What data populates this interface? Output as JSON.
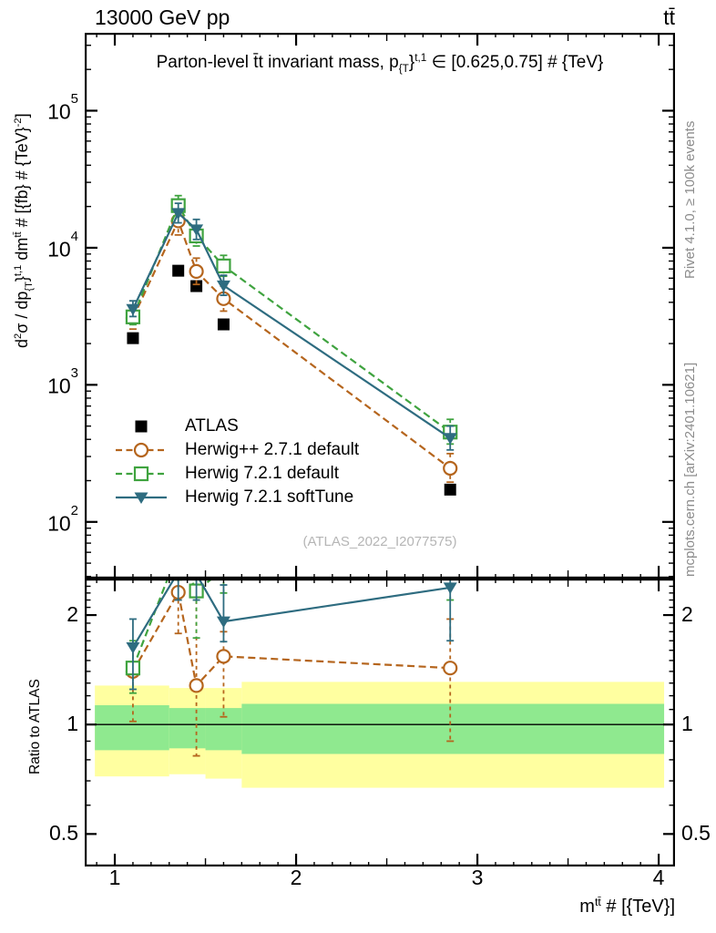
{
  "header": {
    "left": "13000 GeV pp",
    "right": "tt̄"
  },
  "panel_title": {
    "pre": "Parton-level t̄t invariant mass, p",
    "sub": "{T",
    "brace": "}",
    "sup": "t,1",
    "post": " ∈ [0.625,0.75] # {TeV}"
  },
  "y_axis_title": {
    "p1": "d",
    "sup1": "2",
    "p2": "σ / dp",
    "sub1": "{T",
    "p3": "}",
    "sup2": "t,1",
    "p4": " dm",
    "sup3": "tt̄",
    "p5": " # [{fb} # {TeV}",
    "sup4": "-2",
    "p6": "]"
  },
  "x_axis_title": {
    "p1": "m",
    "sup1": "tt̄",
    "p2": " # [{TeV}]"
  },
  "ratio_axis_title": "Ratio to ATLAS",
  "side_notes": {
    "top": "Rivet 4.1.0, ≥ 100k events",
    "bottom": "mcplots.cern.ch [arXiv:2401.10621]"
  },
  "watermark": "(ATLAS_2022_I2077575)",
  "chart_data": {
    "type": "line",
    "title": "Parton-level tt invariant mass, pT^{t,1} in [0.625,0.75] TeV",
    "xlabel": "m^tt [TeV]",
    "ylabel": "d2sigma / dpT^{t,1} dm^tt [fb/TeV^2]",
    "x": [
      1.1,
      1.35,
      1.45,
      1.6,
      2.85
    ],
    "x_axis": {
      "range": [
        0.834,
        4.09
      ],
      "major_ticks": [
        1,
        2,
        3,
        4
      ]
    },
    "top_panel": {
      "y_scale": "log",
      "y_range": [
        38.6,
        370000
      ],
      "labeled_decades": [
        2,
        3,
        4,
        5
      ],
      "series": [
        {
          "name": "ATLAS",
          "color": "#000000",
          "marker": "filled-square",
          "line": "none",
          "values": [
            2190,
            6800,
            5250,
            2760,
            172
          ],
          "err_lo": [
            2050,
            6400,
            4950,
            2600,
            160
          ],
          "err_hi": [
            2350,
            7250,
            5600,
            2950,
            185
          ]
        },
        {
          "name": "Herwig++ 2.7.1 default",
          "color": "#b5651d",
          "marker": "open-circle",
          "line": "dashed",
          "values": [
            3070,
            15700,
            6720,
            4250,
            246
          ],
          "err_lo": [
            2550,
            12400,
            5400,
            3450,
            195
          ],
          "err_hi": [
            3700,
            19800,
            8400,
            5250,
            315
          ]
        },
        {
          "name": "Herwig 7.2.1 default",
          "color": "#3fa33f",
          "marker": "open-square",
          "line": "dashed",
          "values": [
            3130,
            20300,
            12200,
            7370,
            452
          ],
          "err_lo": [
            2750,
            17200,
            10300,
            6200,
            370
          ],
          "err_hi": [
            3600,
            24000,
            14500,
            8800,
            560
          ]
        },
        {
          "name": "Herwig 7.2.1 softTune",
          "color": "#2e6c80",
          "marker": "filled-triangle-down",
          "line": "solid",
          "values": [
            3570,
            17900,
            13600,
            5300,
            409
          ],
          "err_lo": [
            3150,
            15200,
            11500,
            4500,
            335
          ],
          "err_hi": [
            4100,
            21100,
            16100,
            6300,
            500
          ]
        }
      ]
    },
    "ratio_panel": {
      "y_scale": "log",
      "y_range": [
        0.407,
        2.52
      ],
      "axis_labels": [
        "2",
        "1",
        "0.5"
      ],
      "axis_label_values": [
        2,
        1,
        0.5
      ],
      "unity_line": 1,
      "band_colors": {
        "outer": "#ffffa0",
        "inner": "#8fe98f"
      },
      "bands": [
        {
          "x0": 0.89,
          "x1": 1.3,
          "outer": [
            0.72,
            1.28
          ],
          "inner": [
            0.85,
            1.13
          ]
        },
        {
          "x0": 1.3,
          "x1": 1.5,
          "outer": [
            0.73,
            1.26
          ],
          "inner": [
            0.86,
            1.11
          ]
        },
        {
          "x0": 1.5,
          "x1": 1.7,
          "outer": [
            0.71,
            1.26
          ],
          "inner": [
            0.85,
            1.11
          ]
        },
        {
          "x0": 1.7,
          "x1": 4.03,
          "outer": [
            0.67,
            1.31
          ],
          "inner": [
            0.83,
            1.14
          ]
        }
      ],
      "series": [
        {
          "ref": 1,
          "ratios": [
            1.4,
            2.31,
            1.28,
            1.54,
            1.43
          ],
          "err_lo": [
            1.02,
            1.78,
            0.82,
            1.05,
            0.9
          ],
          "err_hi": [
            1.65,
            2.9,
            2.3,
            1.8,
            1.95
          ]
        },
        {
          "ref": 2,
          "ratios": [
            1.43,
            2.99,
            2.33,
            2.67,
            2.63
          ],
          "err_lo": [
            1.22,
            2.5,
            1.73,
            2.3,
            2.2
          ],
          "err_hi": [
            1.7,
            3.6,
            2.9,
            3.1,
            3.1
          ]
        },
        {
          "ref": 3,
          "ratios": [
            1.63,
            2.63,
            2.59,
            1.92,
            2.38
          ],
          "err_lo": [
            1.25,
            2.2,
            2.2,
            1.69,
            1.7
          ],
          "err_hi": [
            1.95,
            3.2,
            3.0,
            2.42,
            2.95
          ]
        }
      ]
    }
  }
}
